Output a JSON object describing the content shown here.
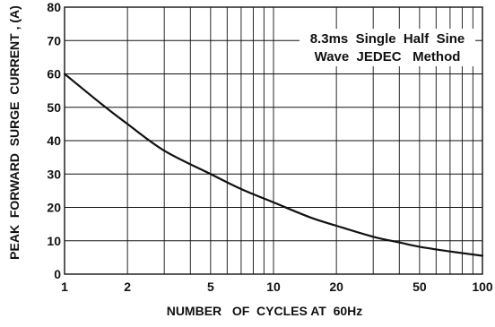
{
  "chart_data": {
    "type": "line",
    "title": "",
    "xlabel": "NUMBER   OF  CYCLES AT  60Hz",
    "ylabel": "PEAK  FORWARD  SURGE  CURRENT , (A)",
    "x_scale": "log",
    "xlim": [
      1,
      100
    ],
    "ylim": [
      0,
      80
    ],
    "x_ticks": [
      1,
      2,
      5,
      10,
      20,
      50,
      100
    ],
    "x_tick_labels": [
      "1",
      "2",
      "5",
      "10",
      "20",
      "50",
      "100"
    ],
    "y_ticks": [
      0,
      10,
      20,
      30,
      40,
      50,
      60,
      70,
      80
    ],
    "y_tick_labels": [
      "0",
      "10",
      "20",
      "30",
      "40",
      "50",
      "60",
      "70",
      "80"
    ],
    "grid": true,
    "series": [
      {
        "x": [
          1,
          1.5,
          2,
          3,
          5,
          7,
          10,
          15,
          20,
          30,
          40,
          50,
          70,
          100
        ],
        "y": [
          60,
          51,
          45,
          37,
          30,
          25.5,
          21.5,
          17,
          14.5,
          11.2,
          9.5,
          8.2,
          6.8,
          5.5
        ],
        "color": "#111111"
      }
    ],
    "annotation": {
      "line1": "8.3ms  Single  Half  Sine",
      "line2": "Wave  JEDEC   Method"
    }
  }
}
